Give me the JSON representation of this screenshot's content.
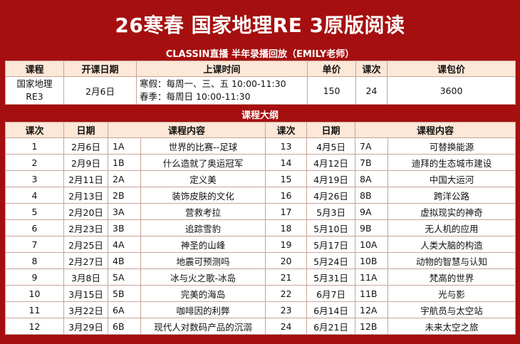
{
  "title": "26寒春 国家地理RE 3原版阅读",
  "subtitle": "CLASSIN直播 半年录播回放（EMILY老师）",
  "info_table": {
    "headers": [
      "课程",
      "开课日期",
      "上课时间",
      "单价",
      "课次",
      "课包价"
    ],
    "course_line1": "国家地理",
    "course_line2": "RE3",
    "start_date": "2月6日",
    "schedule_line1": "寒假：每周一、三、五 10:00-11:30",
    "schedule_line2": "春季：每周日 10:00-11:30",
    "unit_price": "150",
    "sessions": "24",
    "package_price": "3600"
  },
  "outline_title": "课程大纲",
  "outline_headers": {
    "left_no": "课次",
    "left_date": "日期",
    "left_content": "课程内容",
    "right_no": "课次",
    "right_date": "日期",
    "right_content": "课程内容"
  },
  "lessons_left": [
    {
      "no": "1",
      "date": "2月6日",
      "code": "1A",
      "title": "世界的比赛--足球"
    },
    {
      "no": "2",
      "date": "2月9日",
      "code": "1B",
      "title": "什么造就了奥运冠军"
    },
    {
      "no": "3",
      "date": "2月11日",
      "code": "2A",
      "title": "定义美"
    },
    {
      "no": "4",
      "date": "2月13日",
      "code": "2B",
      "title": "装饰皮肤的文化"
    },
    {
      "no": "5",
      "date": "2月20日",
      "code": "3A",
      "title": "营救考拉"
    },
    {
      "no": "6",
      "date": "2月23日",
      "code": "3B",
      "title": "追踪雪豹"
    },
    {
      "no": "7",
      "date": "2月25日",
      "code": "4A",
      "title": "神圣的山峰"
    },
    {
      "no": "8",
      "date": "2月27日",
      "code": "4B",
      "title": "地震可预测吗"
    },
    {
      "no": "9",
      "date": "3月8日",
      "code": "5A",
      "title": "冰与火之歌-冰岛"
    },
    {
      "no": "10",
      "date": "3月15日",
      "code": "5B",
      "title": "完美的海岛"
    },
    {
      "no": "11",
      "date": "3月22日",
      "code": "6A",
      "title": "咖啡因的利弊"
    },
    {
      "no": "12",
      "date": "3月29日",
      "code": "6B",
      "title": "现代人对数码产品的沉溺"
    }
  ],
  "lessons_right": [
    {
      "no": "13",
      "date": "4月5日",
      "code": "7A",
      "title": "可替换能源"
    },
    {
      "no": "14",
      "date": "4月12日",
      "code": "7B",
      "title": "迪拜的生态城市建设"
    },
    {
      "no": "15",
      "date": "4月19日",
      "code": "8A",
      "title": "中国大运河"
    },
    {
      "no": "16",
      "date": "4月26日",
      "code": "8B",
      "title": "跨洋公路"
    },
    {
      "no": "17",
      "date": "5月3日",
      "code": "9A",
      "title": "虚拟现实的神奇"
    },
    {
      "no": "18",
      "date": "5月10日",
      "code": "9B",
      "title": "无人机的应用"
    },
    {
      "no": "19",
      "date": "5月17日",
      "code": "10A",
      "title": "人类大脑的构造"
    },
    {
      "no": "20",
      "date": "5月24日",
      "code": "10B",
      "title": "动物的智慧与认知"
    },
    {
      "no": "21",
      "date": "5月31日",
      "code": "11A",
      "title": "梵高的世界"
    },
    {
      "no": "22",
      "date": "6月7日",
      "code": "11B",
      "title": "光与影"
    },
    {
      "no": "23",
      "date": "6月14日",
      "code": "12A",
      "title": "宇航员与太空站"
    },
    {
      "no": "24",
      "date": "6月21日",
      "code": "12B",
      "title": "未来太空之旅"
    }
  ],
  "colors": {
    "brand_red": "#a50f0f",
    "header_bg": "#fde7d6",
    "border": "#c8a49a"
  }
}
